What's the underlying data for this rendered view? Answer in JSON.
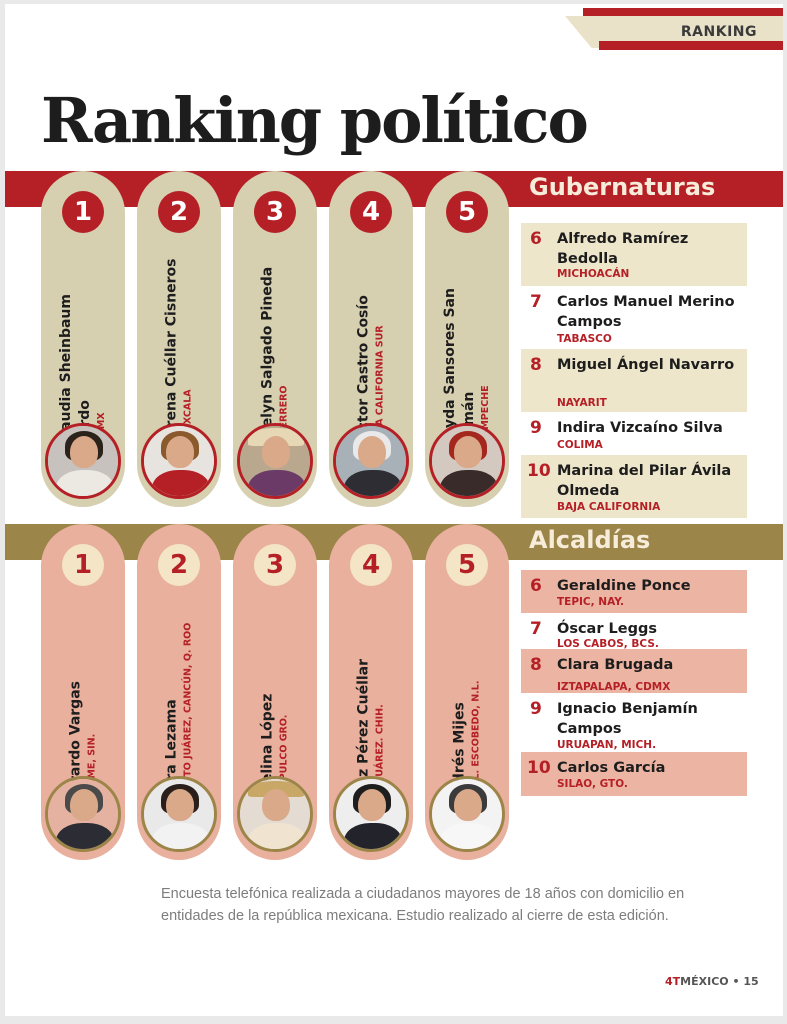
{
  "section_tag": "RANKING",
  "title": "Ranking político",
  "gubernaturas": {
    "heading": "Gubernaturas",
    "top": [
      {
        "rank": "1",
        "name": "Claudia Sheinbaum Pardo",
        "place": "CDMX"
      },
      {
        "rank": "2",
        "name": "Lorena Cuéllar Cisneros",
        "place": "TLAXCALA"
      },
      {
        "rank": "3",
        "name": "Evelyn Salgado Pineda",
        "place": "GUERRERO"
      },
      {
        "rank": "4",
        "name": "Víctor Castro Cosío",
        "place": "BAJA CALIFORNIA SUR"
      },
      {
        "rank": "5",
        "name": "Layda Sansores San Román",
        "place": "CAMPECHE"
      }
    ],
    "list": [
      {
        "rank": "6",
        "name": "Alfredo Ramírez Bedolla",
        "place": "MICHOACÁN"
      },
      {
        "rank": "7",
        "name": "Carlos Manuel Merino Campos",
        "place": "TABASCO"
      },
      {
        "rank": "8",
        "name": "Miguel Ángel Navarro",
        "place": "NAYARIT"
      },
      {
        "rank": "9",
        "name": "Indira Vizcaíno Silva",
        "place": "COLIMA"
      },
      {
        "rank": "10",
        "name": "Marina del Pilar Ávila Olmeda",
        "place": "BAJA CALIFORNIA"
      }
    ]
  },
  "alcaldias": {
    "heading": "Alcaldías",
    "top": [
      {
        "rank": "1",
        "name": "Gerardo Vargas",
        "place": "AHOME, SIN."
      },
      {
        "rank": "2",
        "name": "Mara Lezama",
        "place": "BENITO JUÁREZ, CANCÚN, Q. ROO"
      },
      {
        "rank": "3",
        "name": "Abelina López",
        "place": "ACAPULCO GRO."
      },
      {
        "rank": "4",
        "name": "Cruz Pérez Cuéllar",
        "place": "CD. JUÁREZ. CHIH."
      },
      {
        "rank": "5",
        "name": "Andrés Mijes",
        "place": "GRAL. ESCOBEDO, N.L."
      }
    ],
    "list": [
      {
        "rank": "6",
        "name": "Geraldine Ponce",
        "place": "TEPIC, NAY."
      },
      {
        "rank": "7",
        "name": "Óscar Leggs",
        "place": "LOS CABOS, BCS."
      },
      {
        "rank": "8",
        "name": "Clara Brugada",
        "place": "IZTAPALAPA, CDMX"
      },
      {
        "rank": "9",
        "name": "Ignacio Benjamín Campos",
        "place": "URUAPAN, MICH."
      },
      {
        "rank": "10",
        "name": "Carlos García",
        "place": "SILAO, GTO."
      }
    ]
  },
  "note": "Encuesta telefónica realizada a ciudadanos mayores de 18 años con domicilio en entidades de la república mexicana. Estudio realizado al cierre de esta edición.",
  "footer": {
    "brand": "4T",
    "magazine": "MÉXICO",
    "page": "15"
  },
  "colors": {
    "red": "#b52026",
    "gold": "#9c8548",
    "cream": "#d6cfb0",
    "salmon": "#e8b09d"
  }
}
